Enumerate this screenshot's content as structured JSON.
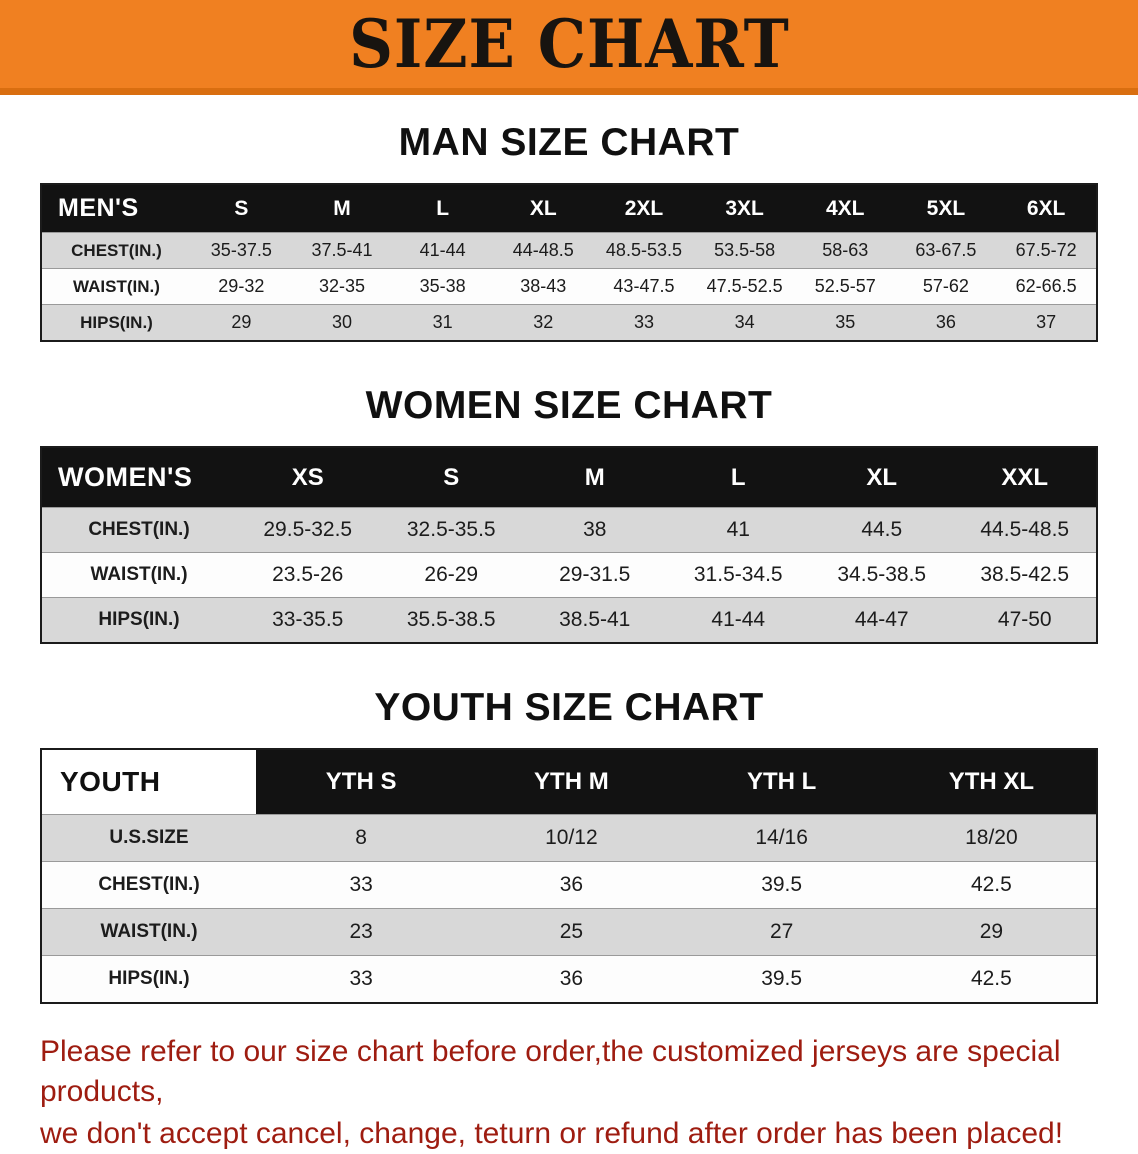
{
  "banner": {
    "title": "SIZE CHART"
  },
  "colors": {
    "banner_orange": "#F08021",
    "banner_edge": "#D96E10",
    "header_black": "#121212",
    "row_gray": "#D8D8D8",
    "footer_red": "#9E1C10"
  },
  "sections": [
    {
      "id": "men",
      "heading": "MAN SIZE CHART",
      "table": {
        "header": [
          "MEN'S",
          "S",
          "M",
          "L",
          "XL",
          "2XL",
          "3XL",
          "4XL",
          "5XL",
          "6XL"
        ],
        "rows": [
          [
            "CHEST(IN.)",
            "35-37.5",
            "37.5-41",
            "41-44",
            "44-48.5",
            "48.5-53.5",
            "53.5-58",
            "58-63",
            "63-67.5",
            "67.5-72"
          ],
          [
            "WAIST(IN.)",
            "29-32",
            "32-35",
            "35-38",
            "38-43",
            "43-47.5",
            "47.5-52.5",
            "52.5-57",
            "57-62",
            "62-66.5"
          ],
          [
            "HIPS(IN.)",
            "29",
            "30",
            "31",
            "32",
            "33",
            "34",
            "35",
            "36",
            "37"
          ]
        ]
      }
    },
    {
      "id": "women",
      "heading": "WOMEN SIZE CHART",
      "table": {
        "header": [
          "WOMEN'S",
          "XS",
          "S",
          "M",
          "L",
          "XL",
          "XXL"
        ],
        "rows": [
          [
            "CHEST(IN.)",
            "29.5-32.5",
            "32.5-35.5",
            "38",
            "41",
            "44.5",
            "44.5-48.5"
          ],
          [
            "WAIST(IN.)",
            "23.5-26",
            "26-29",
            "29-31.5",
            "31.5-34.5",
            "34.5-38.5",
            "38.5-42.5"
          ],
          [
            "HIPS(IN.)",
            "33-35.5",
            "35.5-38.5",
            "38.5-41",
            "41-44",
            "44-47",
            "47-50"
          ]
        ]
      }
    },
    {
      "id": "youth",
      "heading": "YOUTH SIZE CHART",
      "table": {
        "header": [
          "YOUTH",
          "YTH S",
          "YTH M",
          "YTH L",
          "YTH XL"
        ],
        "rows": [
          [
            "U.S.SIZE",
            "8",
            "10/12",
            "14/16",
            "18/20"
          ],
          [
            "CHEST(IN.)",
            "33",
            "36",
            "39.5",
            "42.5"
          ],
          [
            "WAIST(IN.)",
            "23",
            "25",
            "27",
            "29"
          ],
          [
            "HIPS(IN.)",
            "33",
            "36",
            "39.5",
            "42.5"
          ]
        ]
      }
    }
  ],
  "footer": {
    "lines": [
      "Please refer to our size chart before order,the customized jerseys are special products,",
      "we don't accept cancel, change, teturn or refund after order has been placed!"
    ]
  }
}
